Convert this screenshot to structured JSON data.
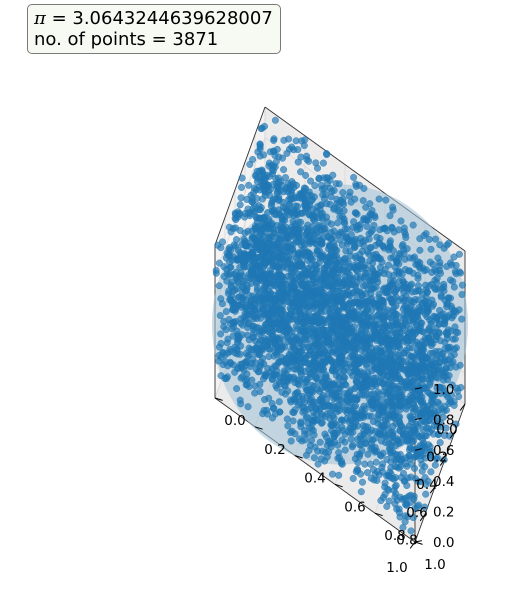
{
  "info": {
    "pi_symbol": "π",
    "pi_equals": " = 3.0643244639628007",
    "points_line": "no. of points = 3871"
  },
  "chart_data": {
    "type": "scatter",
    "projection": "3d",
    "n_points": 3871,
    "pi_estimate": 3.0643244639628007,
    "x_range": [
      0.0,
      1.0
    ],
    "y_range": [
      0.0,
      1.0
    ],
    "z_range": [
      0.0,
      1.0
    ],
    "x_ticks": [
      "0.0",
      "0.2",
      "0.4",
      "0.6",
      "0.8",
      "1.0"
    ],
    "y_ticks": [
      "0.0",
      "0.2",
      "0.4",
      "0.6",
      "0.8",
      "1.0"
    ],
    "z_ticks": [
      "0.0",
      "0.2",
      "0.4",
      "0.6",
      "0.8",
      "1.0"
    ],
    "point_color": "#1f77b4",
    "sphere_color": "#9fc1d6",
    "pane_color": "#f2f2f2",
    "grid": true,
    "view": "isometric-top"
  }
}
